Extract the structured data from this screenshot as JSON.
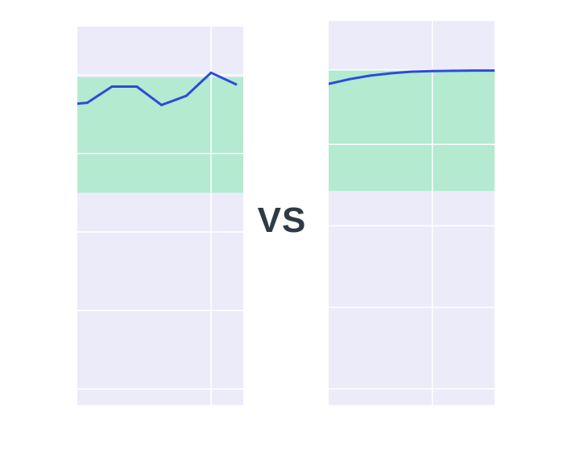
{
  "comparison_label": "VS",
  "colors": {
    "plot_background": "#ebebfa",
    "gridline": "#ffffff",
    "band_fill": "#b3ead0",
    "line": "#2b4cd8",
    "label": "#2f3a45"
  },
  "chart_data": [
    {
      "type": "line",
      "title": "",
      "xlabel": "",
      "ylabel": "",
      "x": [
        0,
        1,
        2,
        3,
        4,
        5,
        6,
        7
      ],
      "values": [
        0.73,
        0.74,
        0.81,
        0.81,
        0.73,
        0.77,
        0.87,
        0.82
      ],
      "xlim": [
        0.6,
        7.3
      ],
      "ylim": [
        -0.57,
        1.07
      ],
      "x_gridlines": [
        6
      ],
      "y_gridlines": [
        -0.5,
        -0.16,
        0.18,
        0.52,
        0.86
      ],
      "shaded_band": [
        0.35,
        0.85
      ],
      "grid": true,
      "legend": false
    },
    {
      "type": "line",
      "title": "",
      "xlabel": "",
      "ylabel": "",
      "x": [
        0,
        1,
        2,
        3,
        4,
        5,
        6,
        7,
        8
      ],
      "values": [
        0.81,
        0.83,
        0.845,
        0.855,
        0.862,
        0.865,
        0.866,
        0.867,
        0.867
      ],
      "xlim": [
        0,
        8
      ],
      "ylim": [
        -0.57,
        1.08
      ],
      "x_gridlines": [
        5
      ],
      "y_gridlines": [
        -0.5,
        -0.15,
        0.2,
        0.55,
        0.87
      ],
      "shaded_band": [
        0.35,
        0.87
      ],
      "grid": true,
      "legend": false
    }
  ]
}
